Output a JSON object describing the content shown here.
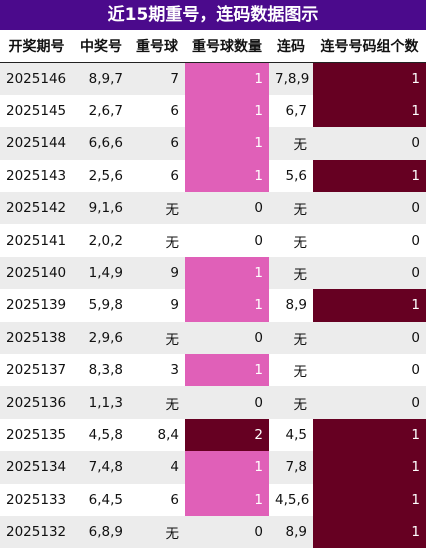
{
  "title": "近15期重号，连码数据图示",
  "headers": [
    "开奖期号",
    "中奖号",
    "重号球",
    "重号球数量",
    "连码",
    "连号号码组个数"
  ],
  "colors": {
    "title_bg": "#4b0a8c",
    "repeat_highlight": "#e060b8",
    "repeat_double": "#660022",
    "consecutive_highlight": "#660022",
    "stripe": "#ececec"
  },
  "rows": [
    {
      "period": "2025146",
      "numbers": "8,9,7",
      "repeat": "7",
      "repeat_count": "1",
      "consecutive": "7,8,9",
      "consecutive_groups": "1"
    },
    {
      "period": "2025145",
      "numbers": "2,6,7",
      "repeat": "6",
      "repeat_count": "1",
      "consecutive": "6,7",
      "consecutive_groups": "1"
    },
    {
      "period": "2025144",
      "numbers": "6,6,6",
      "repeat": "6",
      "repeat_count": "1",
      "consecutive": "无",
      "consecutive_groups": "0"
    },
    {
      "period": "2025143",
      "numbers": "2,5,6",
      "repeat": "6",
      "repeat_count": "1",
      "consecutive": "5,6",
      "consecutive_groups": "1"
    },
    {
      "period": "2025142",
      "numbers": "9,1,6",
      "repeat": "无",
      "repeat_count": "0",
      "consecutive": "无",
      "consecutive_groups": "0"
    },
    {
      "period": "2025141",
      "numbers": "2,0,2",
      "repeat": "无",
      "repeat_count": "0",
      "consecutive": "无",
      "consecutive_groups": "0"
    },
    {
      "period": "2025140",
      "numbers": "1,4,9",
      "repeat": "9",
      "repeat_count": "1",
      "consecutive": "无",
      "consecutive_groups": "0"
    },
    {
      "period": "2025139",
      "numbers": "5,9,8",
      "repeat": "9",
      "repeat_count": "1",
      "consecutive": "8,9",
      "consecutive_groups": "1"
    },
    {
      "period": "2025138",
      "numbers": "2,9,6",
      "repeat": "无",
      "repeat_count": "0",
      "consecutive": "无",
      "consecutive_groups": "0"
    },
    {
      "period": "2025137",
      "numbers": "8,3,8",
      "repeat": "3",
      "repeat_count": "1",
      "consecutive": "无",
      "consecutive_groups": "0"
    },
    {
      "period": "2025136",
      "numbers": "1,1,3",
      "repeat": "无",
      "repeat_count": "0",
      "consecutive": "无",
      "consecutive_groups": "0"
    },
    {
      "period": "2025135",
      "numbers": "4,5,8",
      "repeat": "8,4",
      "repeat_count": "2",
      "consecutive": "4,5",
      "consecutive_groups": "1"
    },
    {
      "period": "2025134",
      "numbers": "7,4,8",
      "repeat": "4",
      "repeat_count": "1",
      "consecutive": "7,8",
      "consecutive_groups": "1"
    },
    {
      "period": "2025133",
      "numbers": "6,4,5",
      "repeat": "6",
      "repeat_count": "1",
      "consecutive": "4,5,6",
      "consecutive_groups": "1"
    },
    {
      "period": "2025132",
      "numbers": "6,8,9",
      "repeat": "无",
      "repeat_count": "0",
      "consecutive": "8,9",
      "consecutive_groups": "1"
    }
  ]
}
